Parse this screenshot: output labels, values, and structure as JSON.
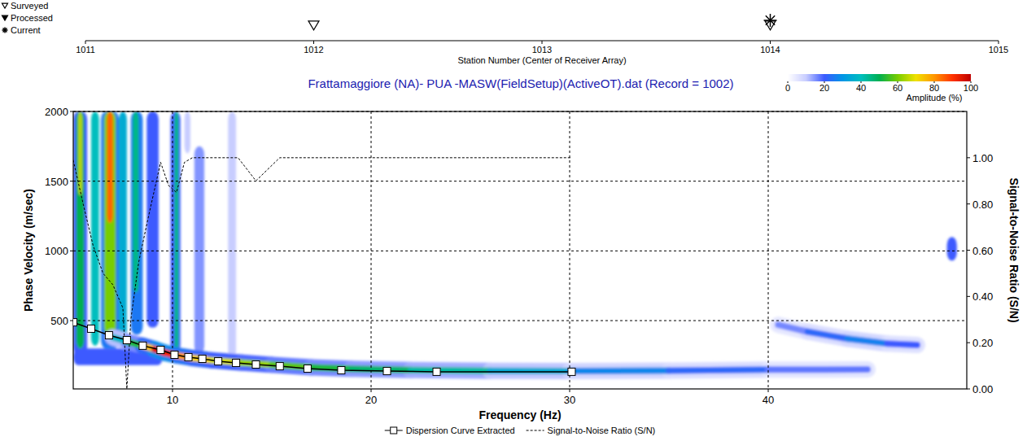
{
  "chart_data": [
    {
      "type": "scatter",
      "x_label": "Station Number (Center of Receiver Array)",
      "xlim": [
        1011,
        1015
      ],
      "xticks": [
        1011,
        1012,
        1013,
        1014,
        1015
      ],
      "legend": "top-left",
      "series": [
        {
          "name": "Surveyed",
          "marker": "triangle-open",
          "x": [
            1012,
            1014
          ]
        },
        {
          "name": "Processed",
          "marker": "triangle-filled",
          "x": []
        },
        {
          "name": "Current",
          "marker": "asterisk",
          "x": [
            1014
          ]
        }
      ]
    },
    {
      "type": "dispersion",
      "title": "Frattamaggiore (NA)- PUA  -MASW(FieldSetup)(ActiveOT).dat (Record = 1002)",
      "x_label": "Frequency (Hz)",
      "y_label": "Phase Velocity (m/sec)",
      "y2_label": "Signal-to-Noise Ratio (S/N)",
      "xlim": [
        5,
        50
      ],
      "xticks": [
        10,
        20,
        30,
        40
      ],
      "ylim": [
        10,
        2000
      ],
      "yticks": [
        500,
        1000,
        1500,
        2000
      ],
      "y2lim": [
        0,
        1.2
      ],
      "y2ticks": [
        {
          "value": 0,
          "label": "0.00"
        },
        {
          "value": 0.2,
          "label": "0.20"
        },
        {
          "value": 0.4,
          "label": "0.40"
        },
        {
          "value": 0.6,
          "label": "0.60"
        },
        {
          "value": 0.8,
          "label": "0.80"
        },
        {
          "value": 1,
          "label": "1.00"
        }
      ],
      "grid": true,
      "legend": "bottom",
      "series": [
        {
          "name": "Dispersion Curve Extracted",
          "type": "line",
          "marker": "square",
          "color": "#000000",
          "x": [
            5.0,
            5.9,
            6.8,
            7.7,
            8.5,
            9.4,
            10.1,
            10.8,
            11.5,
            12.3,
            13.2,
            14.2,
            15.4,
            16.8,
            18.5,
            20.8,
            23.3,
            30.1
          ],
          "values": [
            488,
            442,
            395,
            360,
            320,
            290,
            255,
            238,
            226,
            208,
            197,
            185,
            173,
            156,
            144,
            138,
            133,
            133
          ]
        },
        {
          "name": "Signal-to-Noise Ratio (S/N)",
          "type": "line",
          "line_style": "dashed",
          "axis": "y2",
          "color": "#000000",
          "x": [
            5.0,
            5.5,
            6.0,
            6.5,
            7.0,
            7.5,
            7.7,
            7.9,
            8.3,
            8.8,
            9.4,
            9.8,
            10.2,
            10.6,
            11.0,
            13.3,
            14.2,
            15.4,
            30.1
          ],
          "values": [
            0.99,
            0.8,
            0.62,
            0.5,
            0.45,
            0.35,
            0.0,
            0.3,
            0.55,
            0.75,
            0.98,
            0.88,
            0.85,
            0.98,
            1.0,
            1.0,
            0.9,
            1.0,
            1.0
          ]
        }
      ],
      "colorbar": {
        "range": [
          0,
          100
        ],
        "ticks": [
          0,
          20,
          40,
          60,
          80,
          100
        ],
        "label": "Amplitude (%)"
      },
      "amplitude_patches": [
        {
          "x": [
            5.0,
            9.5
          ],
          "y": [
            180,
            300
          ],
          "amplitude": 20
        },
        {
          "x": [
            5.0,
            5.7
          ],
          "y": [
            250,
            2000
          ],
          "amplitude": 20
        },
        {
          "x": [
            5.15,
            5.55
          ],
          "y": [
            300,
            2000
          ],
          "amplitude": 50
        },
        {
          "x": [
            5.25,
            5.45
          ],
          "y": [
            1400,
            2000
          ],
          "amplitude": 65
        },
        {
          "x": [
            5.9,
            6.3
          ],
          "y": [
            320,
            2000
          ],
          "amplitude": 40
        },
        {
          "x": [
            6.4,
            7.3
          ],
          "y": [
            300,
            2000
          ],
          "amplitude": 25
        },
        {
          "x": [
            6.55,
            7.15
          ],
          "y": [
            400,
            2000
          ],
          "amplitude": 60
        },
        {
          "x": [
            6.7,
            7.0
          ],
          "y": [
            1200,
            2000
          ],
          "amplitude": 85
        },
        {
          "x": [
            7.3,
            7.7
          ],
          "y": [
            350,
            2000
          ],
          "amplitude": 35
        },
        {
          "x": [
            7.9,
            8.5
          ],
          "y": [
            400,
            2000
          ],
          "amplitude": 25
        },
        {
          "x": [
            8.0,
            8.3
          ],
          "y": [
            700,
            2000
          ],
          "amplitude": 45
        },
        {
          "x": [
            8.7,
            9.3
          ],
          "y": [
            450,
            2000
          ],
          "amplitude": 20
        },
        {
          "x": [
            9.9,
            10.4
          ],
          "y": [
            270,
            2000
          ],
          "amplitude": 20
        },
        {
          "x": [
            10.1,
            10.3
          ],
          "y": [
            280,
            2000
          ],
          "amplitude": 45
        },
        {
          "x": [
            10.6,
            10.9
          ],
          "y": [
            1700,
            2000
          ],
          "amplitude": 10
        },
        {
          "x": [
            11.1,
            11.6
          ],
          "y": [
            260,
            1750
          ],
          "amplitude": 15
        },
        {
          "x": [
            12.8,
            13.2
          ],
          "y": [
            220,
            2000
          ],
          "amplitude": 10
        },
        {
          "x": [
            49.0,
            49.5
          ],
          "y": [
            930,
            1100
          ],
          "amplitude": 20
        }
      ],
      "amplitude_ridges": [
        {
          "x": [
            7.0,
            7.8,
            8.5,
            9.1,
            9.6,
            10.2,
            11,
            12,
            13.5,
            15,
            17,
            19,
            22,
            26,
            30,
            35,
            40,
            45
          ],
          "values": [
            380,
            345,
            320,
            295,
            270,
            250,
            232,
            215,
            198,
            183,
            165,
            155,
            145,
            140,
            138,
            142,
            148,
            150
          ],
          "amplitude": [
            30,
            45,
            60,
            90,
            100,
            85,
            75,
            70,
            65,
            60,
            55,
            50,
            45,
            40,
            30,
            25,
            20,
            15
          ]
        },
        {
          "x": [
            40.5,
            42,
            44,
            46,
            47.5
          ],
          "values": [
            470,
            420,
            370,
            335,
            325
          ],
          "amplitude": [
            12,
            20,
            25,
            28,
            12
          ]
        }
      ]
    }
  ]
}
